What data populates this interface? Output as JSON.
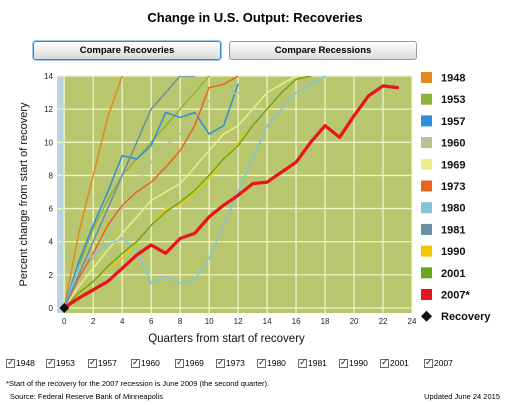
{
  "title": "Change in U.S. Output: Recoveries",
  "tabs": [
    {
      "label": "Compare Recoveries",
      "active": true
    },
    {
      "label": "Compare Recessions",
      "active": false
    }
  ],
  "checkboxes": [
    "1948",
    "1953",
    "1957",
    "1960",
    "1969",
    "1973",
    "1980",
    "1981",
    "1990",
    "2001",
    "2007"
  ],
  "footnote": "*Start of the recovery for the 2007 recession is June 2009 (the second quarter).",
  "source": "Source: Federal Reserve Bank of Minneapolis",
  "updated": "Updated June 24 2015",
  "colors": {
    "plot_bg": "#b8c66e",
    "grid": "#eef3c9",
    "axis_band": "#bcd3e0"
  },
  "chart_data": {
    "type": "line",
    "xlabel": "Quarters from start of recovery",
    "ylabel": "Percent change from start of recovery",
    "xlim": [
      -0.5,
      24
    ],
    "ylim": [
      -0.3,
      14
    ],
    "xticks": [
      0,
      2,
      4,
      6,
      8,
      10,
      12,
      14,
      16,
      18,
      20,
      22,
      24
    ],
    "yticks": [
      0,
      2,
      4,
      6,
      8,
      10,
      12,
      14
    ],
    "grid": true,
    "legend_position": "right",
    "series": [
      {
        "name": "1948",
        "color": "#e08a1e",
        "width": 1.5,
        "x": [
          0,
          1,
          2,
          3,
          4
        ],
        "y": [
          0,
          4.5,
          8,
          11.5,
          14
        ]
      },
      {
        "name": "1953",
        "color": "#8fb43c",
        "width": 1.5,
        "x": [
          0,
          1,
          2,
          3,
          4,
          5,
          6,
          7,
          8,
          9,
          10
        ],
        "y": [
          0,
          2.5,
          4.8,
          6.5,
          8,
          9,
          10,
          11,
          12,
          13,
          14
        ]
      },
      {
        "name": "1957",
        "color": "#2f8fd6",
        "width": 1.5,
        "x": [
          0,
          1,
          2,
          3,
          4,
          5,
          6,
          7,
          8,
          9,
          10,
          11,
          12
        ],
        "y": [
          0,
          2.8,
          5,
          7,
          9.2,
          9,
          9.8,
          11.8,
          11.5,
          11.8,
          10.5,
          11,
          13.5
        ]
      },
      {
        "name": "1960",
        "color": "#b9c38e",
        "width": 1.5,
        "x": [
          0,
          1,
          2,
          3,
          4,
          5,
          6,
          7,
          8,
          9,
          10,
          11,
          12,
          13,
          14,
          15,
          16,
          17,
          18
        ],
        "y": [
          0,
          1.5,
          3,
          4.5,
          6,
          7.5,
          8.8,
          9.8,
          10.5,
          11.5,
          12.5,
          12.8,
          13,
          12,
          11,
          12,
          13,
          12.5,
          14
        ]
      },
      {
        "name": "1969",
        "color": "#e8ef8c",
        "width": 1.5,
        "x": [
          0,
          1,
          2,
          3,
          4,
          5,
          6,
          7,
          8,
          9,
          10,
          11,
          12,
          13,
          14,
          15,
          16,
          17
        ],
        "y": [
          0,
          1.3,
          2.4,
          3.5,
          4.5,
          5.5,
          6.5,
          7,
          7.5,
          8.5,
          9.5,
          10.5,
          11,
          12,
          13,
          13.5,
          14,
          14
        ]
      },
      {
        "name": "1973",
        "color": "#e86420",
        "width": 1.5,
        "x": [
          0,
          1,
          2,
          3,
          4,
          5,
          6,
          7,
          8,
          9,
          10,
          11,
          12
        ],
        "y": [
          0,
          1.8,
          3.3,
          5,
          6.2,
          7,
          7.6,
          8.5,
          9.5,
          11,
          13.3,
          13.5,
          14
        ]
      },
      {
        "name": "1980",
        "color": "#82c3e0",
        "width": 1.5,
        "x": [
          0,
          1,
          2,
          3,
          4,
          5,
          6,
          7,
          8,
          9,
          10,
          11,
          12,
          13,
          14,
          15,
          16,
          17,
          18
        ],
        "y": [
          0,
          2.5,
          3.2,
          3.8,
          4.2,
          3.5,
          1.5,
          1.9,
          1.5,
          1.7,
          3,
          5,
          7,
          9,
          11,
          12,
          13,
          13.5,
          14
        ]
      },
      {
        "name": "1981",
        "color": "#6c8fa0",
        "width": 1.5,
        "x": [
          0,
          1,
          2,
          3,
          4,
          5,
          6,
          7,
          8,
          9
        ],
        "y": [
          0,
          2,
          4,
          6,
          8,
          10,
          12,
          13,
          14,
          14
        ]
      },
      {
        "name": "1990",
        "color": "#f0c800",
        "width": 1.5,
        "x": [
          0,
          1,
          2,
          3,
          4,
          5,
          6,
          7,
          8,
          9,
          10,
          11,
          12,
          13,
          14,
          15,
          16
        ],
        "y": [
          0,
          0.8,
          1.6,
          2.4,
          3,
          4,
          5,
          6,
          6.2,
          7,
          7.8,
          9,
          10,
          11,
          12,
          13,
          13.8
        ]
      },
      {
        "name": "2001",
        "color": "#68a820",
        "width": 1.5,
        "x": [
          0,
          1,
          2,
          3,
          4,
          5,
          6,
          7,
          8,
          9,
          10,
          11,
          12,
          13,
          14,
          15,
          16,
          17
        ],
        "y": [
          0,
          0.9,
          1.6,
          2.5,
          3.3,
          4,
          5,
          5.8,
          6.4,
          7.1,
          8,
          9,
          9.8,
          11,
          12,
          13,
          13.8,
          14
        ]
      },
      {
        "name": "2007*",
        "color": "#e8141c",
        "width": 3.2,
        "x": [
          0,
          1,
          2,
          3,
          4,
          5,
          6,
          7,
          8,
          9,
          10,
          11,
          12,
          13,
          14,
          15,
          16,
          17,
          18,
          19,
          20,
          21,
          22,
          23
        ],
        "y": [
          0,
          0.6,
          1.1,
          1.6,
          2.4,
          3.2,
          3.8,
          3.3,
          4.2,
          4.5,
          5.5,
          6.2,
          6.8,
          7.5,
          7.6,
          8.2,
          8.8,
          10,
          11,
          10.3,
          11.6,
          12.8,
          13.4,
          13.3
        ]
      }
    ],
    "recovery_marker": {
      "label": "Recovery",
      "x": 0,
      "y": 0
    }
  }
}
